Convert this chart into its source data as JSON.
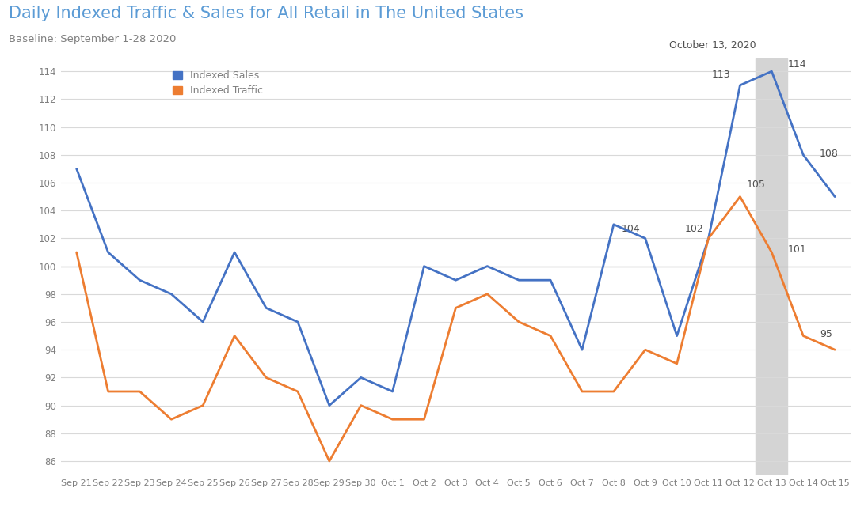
{
  "title": "Daily Indexed Traffic & Sales for All Retail in The United States",
  "subtitle": "Baseline: September 1-28 2020",
  "title_color": "#5b9bd5",
  "subtitle_color": "#808080",
  "x_labels": [
    "Sep 21",
    "Sep 22",
    "Sep 23",
    "Sep 24",
    "Sep 25",
    "Sep 26",
    "Sep 27",
    "Sep 28",
    "Sep 29",
    "Sep 30",
    "Oct 1",
    "Oct 2",
    "Oct 3",
    "Oct 4",
    "Oct 5",
    "Oct 6",
    "Oct 7",
    "Oct 8",
    "Oct 9",
    "Oct 10",
    "Oct 11",
    "Oct 12",
    "Oct 13",
    "Oct 14",
    "Oct 15"
  ],
  "sales": [
    107,
    101,
    99,
    98,
    96,
    101,
    97,
    96,
    90,
    92,
    91,
    100,
    99,
    100,
    99,
    99,
    94,
    103,
    102,
    95,
    102,
    113,
    114,
    108,
    105
  ],
  "traffic": [
    101,
    91,
    91,
    89,
    90,
    95,
    92,
    91,
    86,
    90,
    89,
    89,
    97,
    98,
    96,
    95,
    91,
    91,
    94,
    93,
    102,
    105,
    101,
    95,
    94
  ],
  "sales_color": "#4472c4",
  "traffic_color": "#ed7d31",
  "ylim": [
    85,
    115
  ],
  "yticks": [
    86,
    88,
    90,
    92,
    94,
    96,
    98,
    100,
    102,
    104,
    106,
    108,
    110,
    112,
    114
  ],
  "highlight_index": 22,
  "highlight_label": "October 13, 2020",
  "background_color": "#ffffff",
  "grid_color": "#d9d9d9",
  "highlight_color": "#d4d4d4"
}
